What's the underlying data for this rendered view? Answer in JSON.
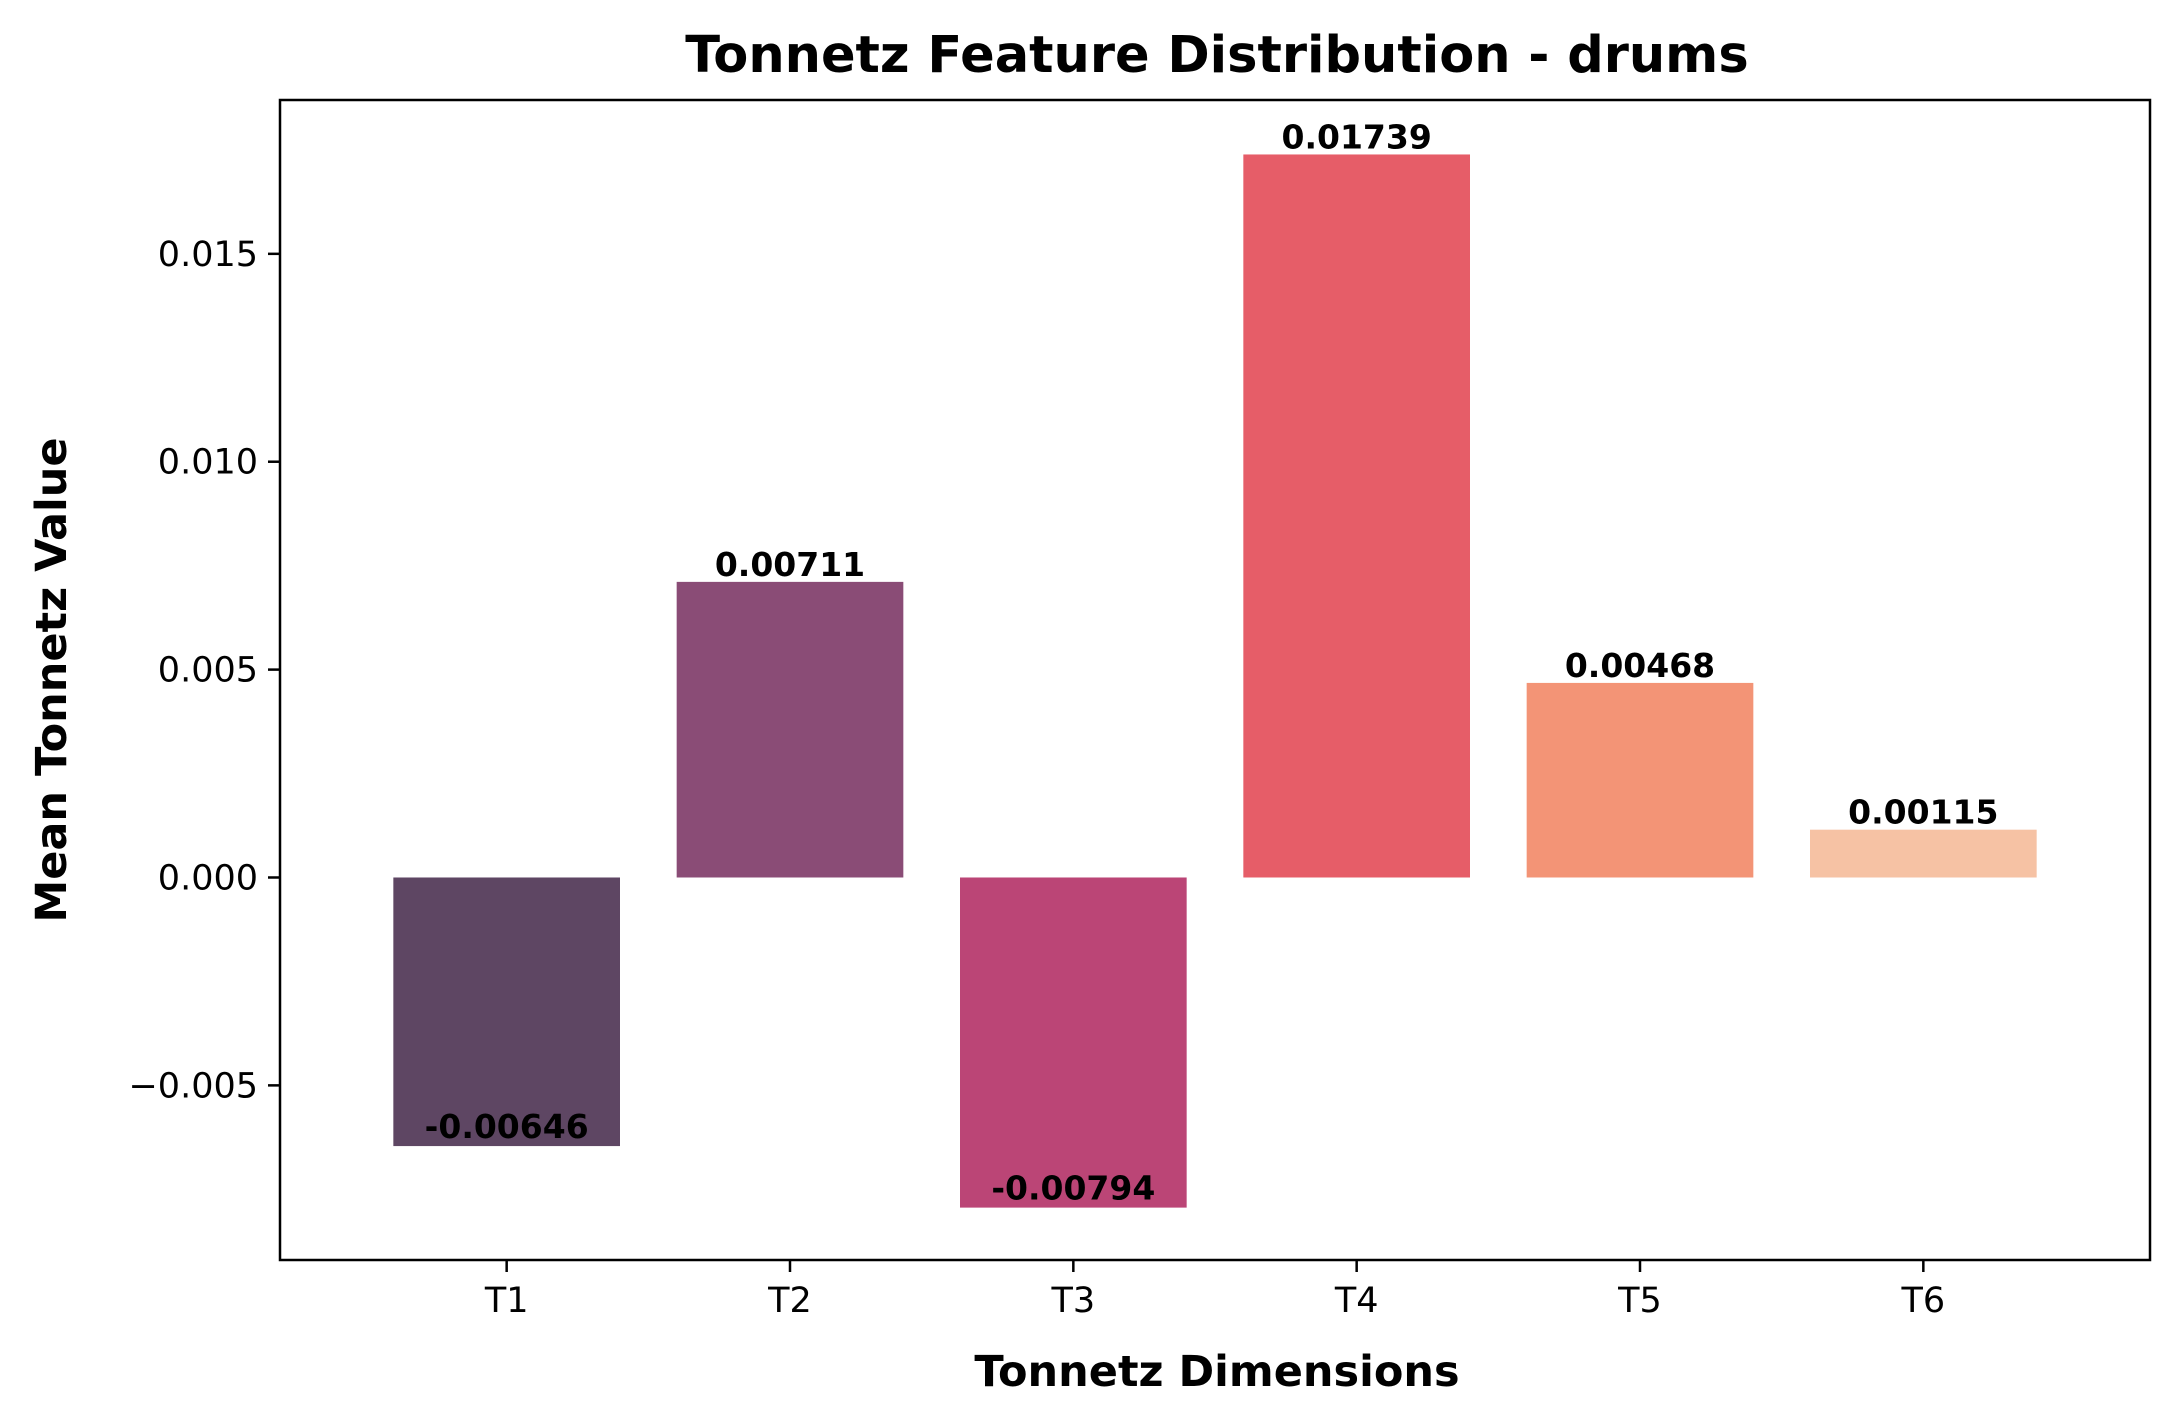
{
  "chart_data": {
    "type": "bar",
    "title": "Tonnetz Feature Distribution - drums",
    "xlabel": "Tonnetz Dimensions",
    "ylabel": "Mean Tonnetz Value",
    "categories": [
      "T1",
      "T2",
      "T3",
      "T4",
      "T5",
      "T6"
    ],
    "values": [
      -0.00646,
      0.00711,
      -0.00794,
      0.01739,
      0.00468,
      0.00115
    ],
    "value_labels": [
      "-0.00646",
      "0.00711",
      "-0.00794",
      "0.01739",
      "0.00468",
      "0.00115"
    ],
    "colors": [
      "#5e4663",
      "#8a4c76",
      "#bb4576",
      "#e65d68",
      "#f39476",
      "#f6c2a4"
    ],
    "ylim": [
      -0.0092,
      0.0187
    ],
    "yticks": [
      -0.005,
      0.0,
      0.005,
      0.01,
      0.015
    ],
    "ytick_labels": [
      "−0.005",
      "0.000",
      "0.005",
      "0.010",
      "0.015"
    ],
    "grid": false,
    "legend": "none"
  }
}
